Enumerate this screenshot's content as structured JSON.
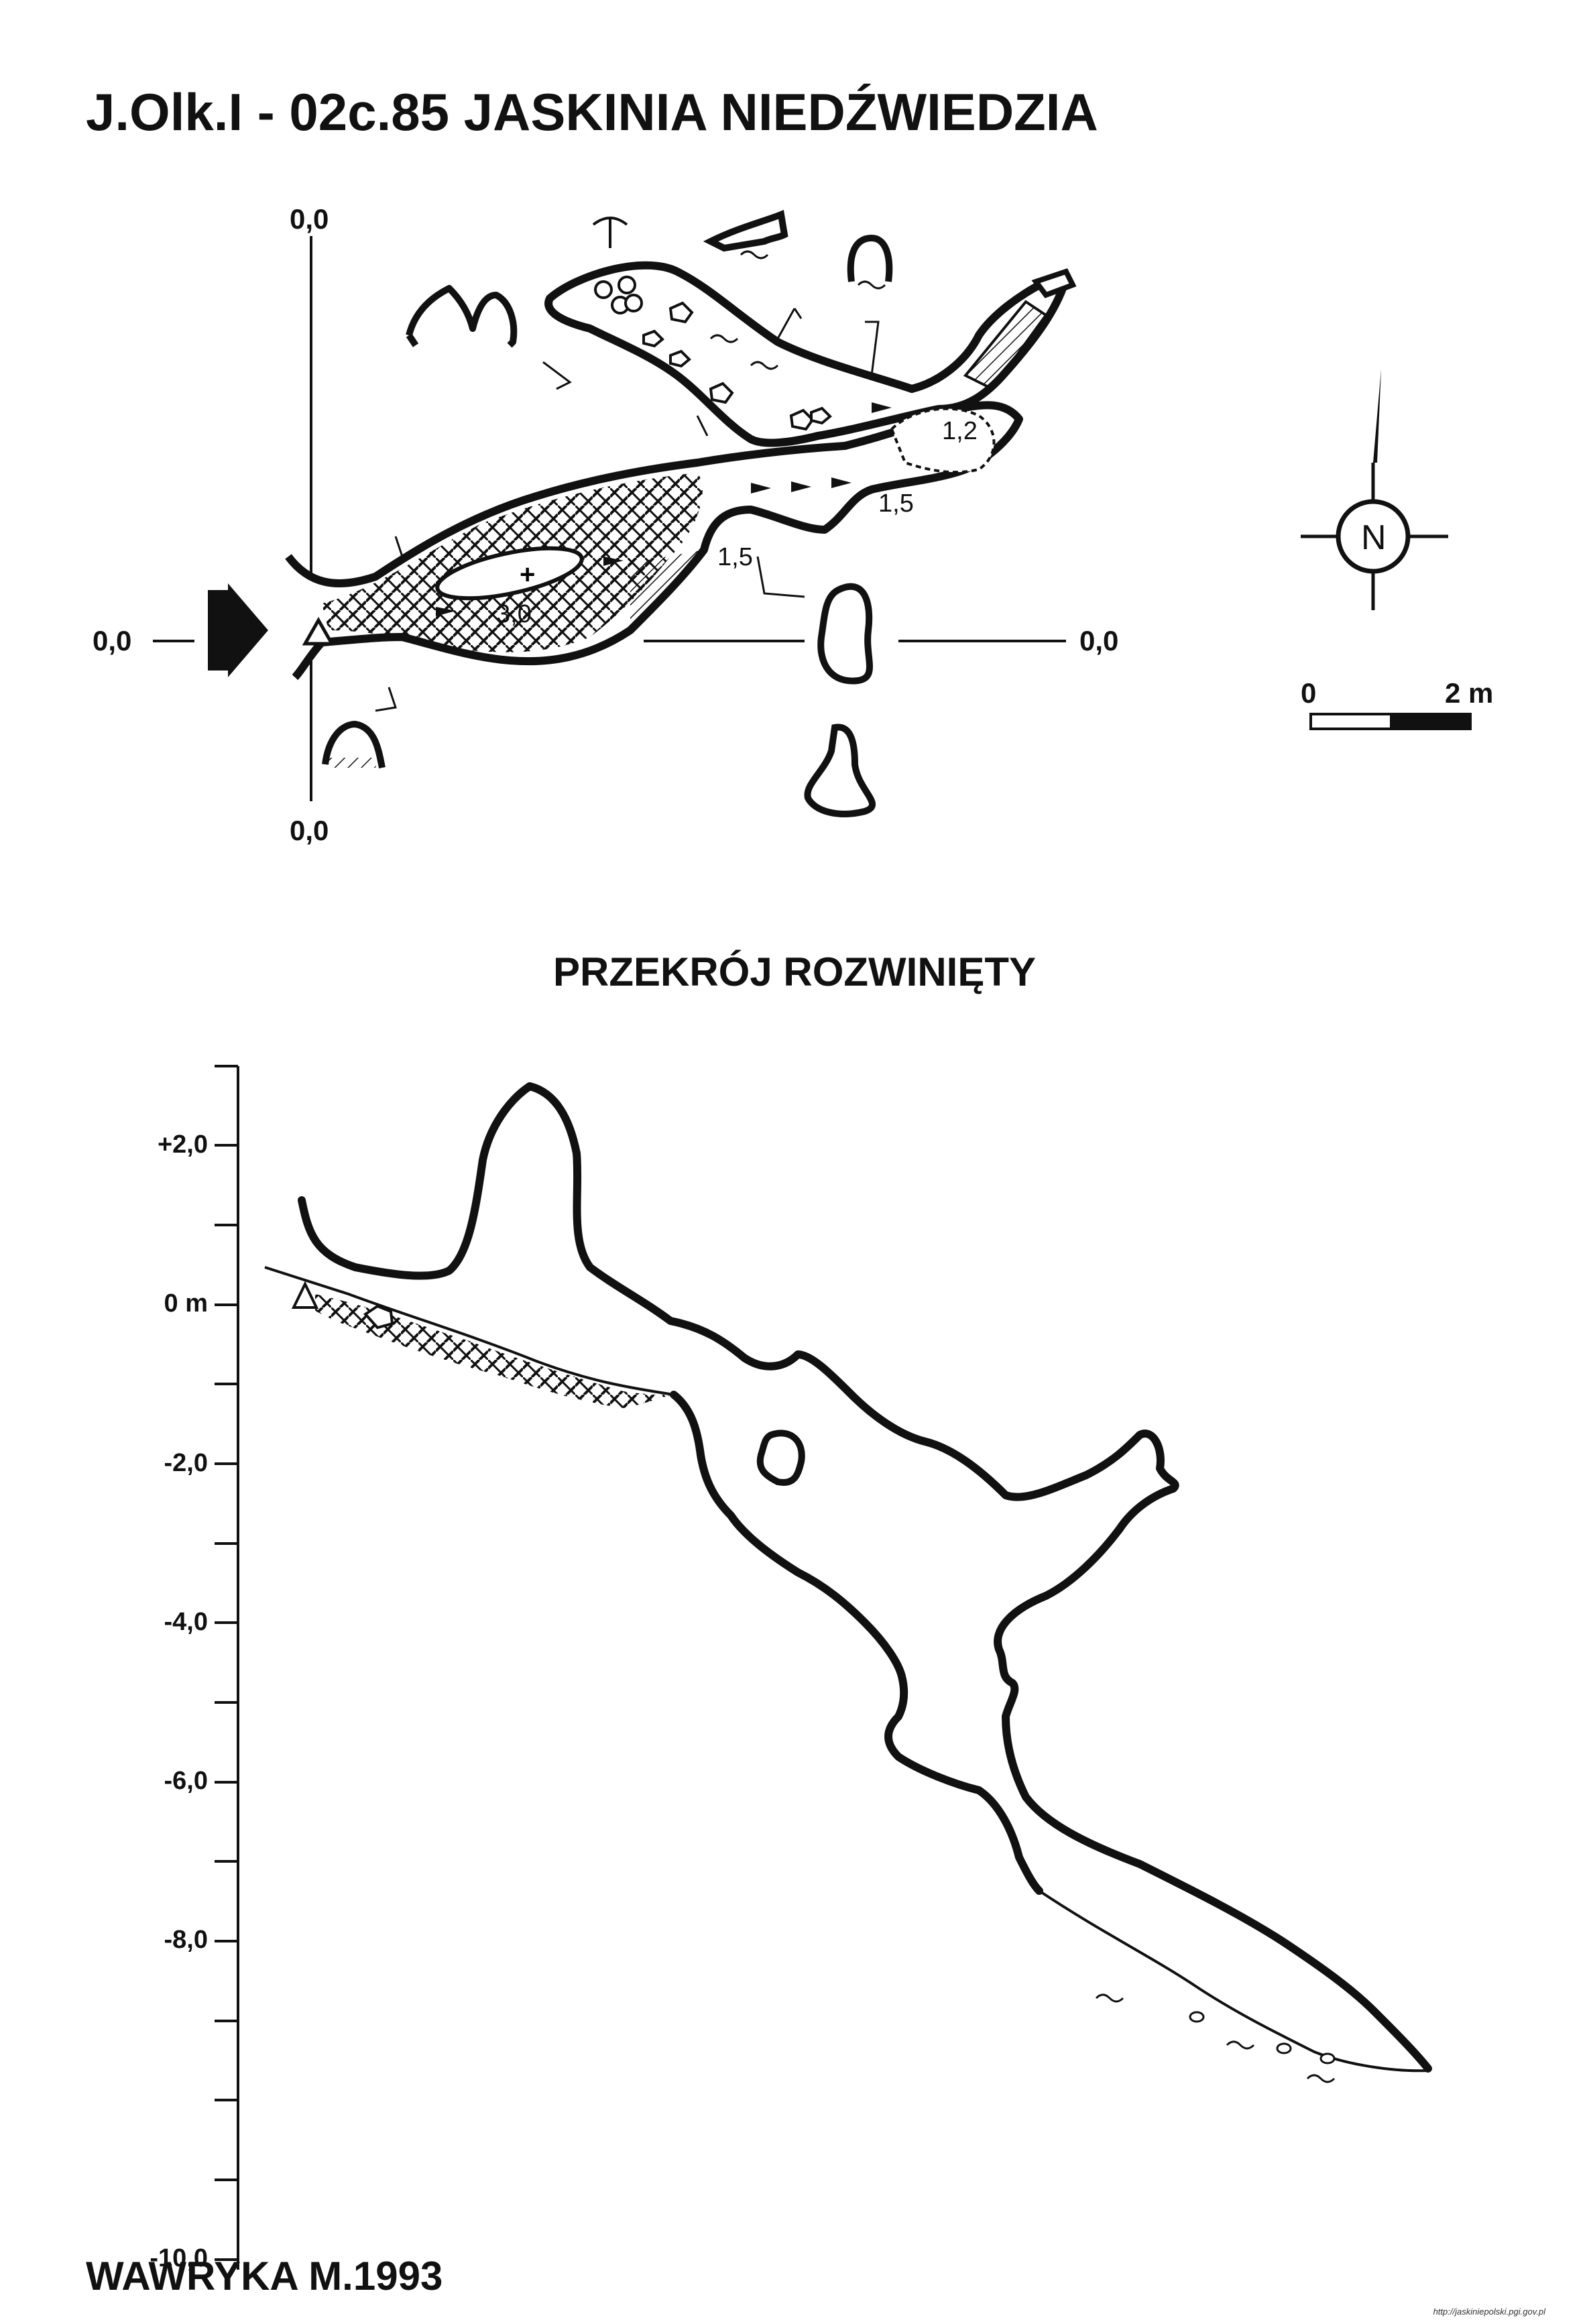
{
  "title": "J.Olk.I - 02c.85  JASKINIA NIEDŹWIEDZIA",
  "plan": {
    "coord_top": "0,0",
    "coord_left": "0,0",
    "coord_right": "0,0",
    "coord_bottom": "0,0",
    "depths": [
      "1,2",
      "1,5",
      "1,5",
      "3,0"
    ],
    "north_label": "N",
    "scale_start": "0",
    "scale_end": "2 m"
  },
  "section": {
    "title": "PRZEKRÓJ ROZWINIĘTY",
    "axis_labels": [
      "+2,0",
      "0 m",
      "-2,0",
      "-4,0",
      "-6,0",
      "-8,0",
      "-10,0"
    ]
  },
  "author": "WAWRYKA M.1993",
  "credit": "http://jaskiniepolski.pgi.gov.pl"
}
